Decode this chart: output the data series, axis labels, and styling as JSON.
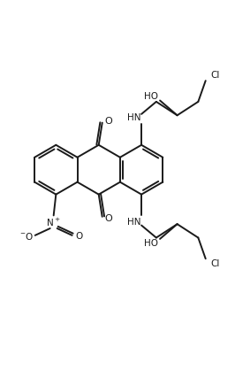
{
  "bg_color": "#ffffff",
  "line_color": "#1a1a1a",
  "line_width": 1.4,
  "font_size": 7.5,
  "figsize": [
    2.66,
    4.18
  ],
  "dpi": 100,
  "xlim": [
    0,
    10
  ],
  "ylim": [
    0,
    15.7
  ]
}
